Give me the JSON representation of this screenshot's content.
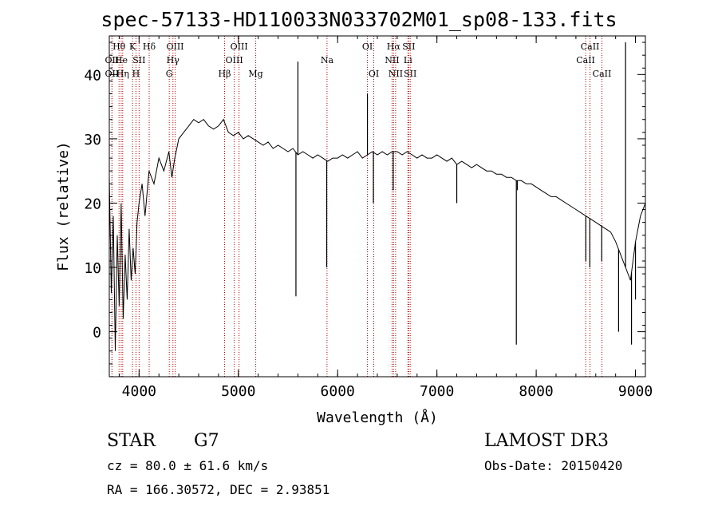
{
  "title": "spec-57133-HD110033N033702M01_sp08-133.fits",
  "footer": {
    "class_label": "STAR",
    "subclass": "G7",
    "survey": "LAMOST DR3",
    "cz": "cz = 80.0 ± 61.6 km/s",
    "obs_date": "Obs-Date: 20150420",
    "coords": "RA = 166.30572, DEC =    2.93851"
  },
  "chart_data": {
    "type": "line",
    "xlabel": "Wavelength (Å)",
    "ylabel": "Flux (relative)",
    "xlim": [
      3700,
      9100
    ],
    "ylim": [
      -7,
      46
    ],
    "xticks": [
      4000,
      5000,
      6000,
      7000,
      8000,
      9000
    ],
    "yticks": [
      0,
      10,
      20,
      30,
      40
    ],
    "series": [
      {
        "name": "spectrum",
        "x": [
          3700,
          3720,
          3740,
          3760,
          3780,
          3800,
          3820,
          3840,
          3860,
          3880,
          3900,
          3920,
          3940,
          3960,
          3980,
          4000,
          4030,
          4060,
          4100,
          4150,
          4200,
          4250,
          4300,
          4330,
          4360,
          4400,
          4450,
          4500,
          4550,
          4600,
          4650,
          4700,
          4750,
          4800,
          4850,
          4900,
          4950,
          5000,
          5050,
          5100,
          5150,
          5200,
          5250,
          5300,
          5350,
          5400,
          5450,
          5500,
          5550,
          5600,
          5650,
          5700,
          5750,
          5800,
          5850,
          5900,
          5950,
          6000,
          6050,
          6100,
          6150,
          6200,
          6250,
          6300,
          6350,
          6400,
          6450,
          6500,
          6550,
          6600,
          6650,
          6700,
          6750,
          6800,
          6850,
          6900,
          6950,
          7000,
          7050,
          7100,
          7150,
          7200,
          7250,
          7300,
          7350,
          7400,
          7450,
          7500,
          7550,
          7600,
          7650,
          7700,
          7750,
          7800,
          7850,
          7900,
          7950,
          8000,
          8050,
          8100,
          8150,
          8200,
          8250,
          8300,
          8350,
          8400,
          8450,
          8500,
          8550,
          8600,
          8650,
          8700,
          8750,
          8800,
          8850,
          8900,
          8950,
          9000,
          9050,
          9100
        ],
        "y": [
          24,
          6,
          18,
          -3,
          15,
          4,
          20,
          2,
          12,
          5,
          16,
          8,
          13,
          9,
          17,
          20,
          23,
          18,
          25,
          23,
          27,
          25,
          28,
          24,
          27,
          30,
          31,
          32,
          33,
          32.5,
          33,
          32,
          31.5,
          32,
          33,
          31,
          30.5,
          31,
          30,
          30.5,
          30,
          29.5,
          29,
          29.5,
          28.5,
          29,
          28.5,
          28,
          28.5,
          27.5,
          28,
          27.5,
          27,
          27.5,
          27,
          26.5,
          27,
          27,
          27.5,
          27,
          27.5,
          28,
          27,
          27.5,
          28,
          27.5,
          28,
          27.5,
          28,
          28,
          27.5,
          28,
          27.5,
          27,
          27.5,
          27,
          27,
          27.5,
          27,
          26.5,
          27,
          26,
          26.5,
          26,
          25.5,
          26,
          25.5,
          25,
          25,
          24.5,
          24.5,
          24,
          24,
          23.5,
          23.5,
          23,
          23,
          22.5,
          22,
          21.5,
          21,
          21,
          20.5,
          20,
          19.5,
          19,
          18.5,
          18,
          17.5,
          17,
          16.5,
          16,
          15.5,
          14,
          12,
          10,
          8,
          14,
          18,
          20
        ]
      }
    ],
    "spikes": [
      {
        "x": 5580,
        "y": 5.5
      },
      {
        "x": 5600,
        "y": 42
      },
      {
        "x": 5890,
        "y": 10
      },
      {
        "x": 6300,
        "y": 37
      },
      {
        "x": 6360,
        "y": 20
      },
      {
        "x": 6560,
        "y": 22
      },
      {
        "x": 7200,
        "y": 20
      },
      {
        "x": 7800,
        "y": -2
      },
      {
        "x": 7810,
        "y": 22
      },
      {
        "x": 8500,
        "y": 11
      },
      {
        "x": 8540,
        "y": 10
      },
      {
        "x": 8660,
        "y": 11
      },
      {
        "x": 8830,
        "y": 0
      },
      {
        "x": 8900,
        "y": 45
      },
      {
        "x": 8960,
        "y": -2
      },
      {
        "x": 9000,
        "y": 5
      }
    ],
    "line_marks": [
      {
        "name": "OII",
        "x": 3727,
        "row": 1
      },
      {
        "name": "OII",
        "x": 3727,
        "row": 2
      },
      {
        "name": "Hθ",
        "x": 3798,
        "row": 0
      },
      {
        "name": "He",
        "x": 3820,
        "row": 1
      },
      {
        "name": "Hη",
        "x": 3835,
        "row": 2
      },
      {
        "name": "K",
        "x": 3934,
        "row": 0
      },
      {
        "name": "SII",
        "x": 4000,
        "row": 1
      },
      {
        "name": "H",
        "x": 3969,
        "row": 2
      },
      {
        "name": "Hδ",
        "x": 4102,
        "row": 0
      },
      {
        "name": "OIII",
        "x": 4363,
        "row": 0
      },
      {
        "name": "Hγ",
        "x": 4341,
        "row": 1
      },
      {
        "name": "G",
        "x": 4304,
        "row": 2
      },
      {
        "name": "Hβ",
        "x": 4861,
        "row": 2
      },
      {
        "name": "OIII",
        "x": 4959,
        "row": 1
      },
      {
        "name": "OIII",
        "x": 5007,
        "row": 0
      },
      {
        "name": "Mg",
        "x": 5175,
        "row": 2
      },
      {
        "name": "Na",
        "x": 5893,
        "row": 1
      },
      {
        "name": "OI",
        "x": 6300,
        "row": 0
      },
      {
        "name": "OI",
        "x": 6364,
        "row": 2
      },
      {
        "name": "Hα",
        "x": 6563,
        "row": 0
      },
      {
        "name": "NII",
        "x": 6548,
        "row": 1
      },
      {
        "name": "NII",
        "x": 6584,
        "row": 2
      },
      {
        "name": "SII",
        "x": 6716,
        "row": 0
      },
      {
        "name": "Li",
        "x": 6708,
        "row": 1
      },
      {
        "name": "SII",
        "x": 6731,
        "row": 2
      },
      {
        "name": "CaII",
        "x": 8542,
        "row": 0
      },
      {
        "name": "CaII",
        "x": 8498,
        "row": 1
      },
      {
        "name": "CaII",
        "x": 8662,
        "row": 2
      }
    ]
  }
}
